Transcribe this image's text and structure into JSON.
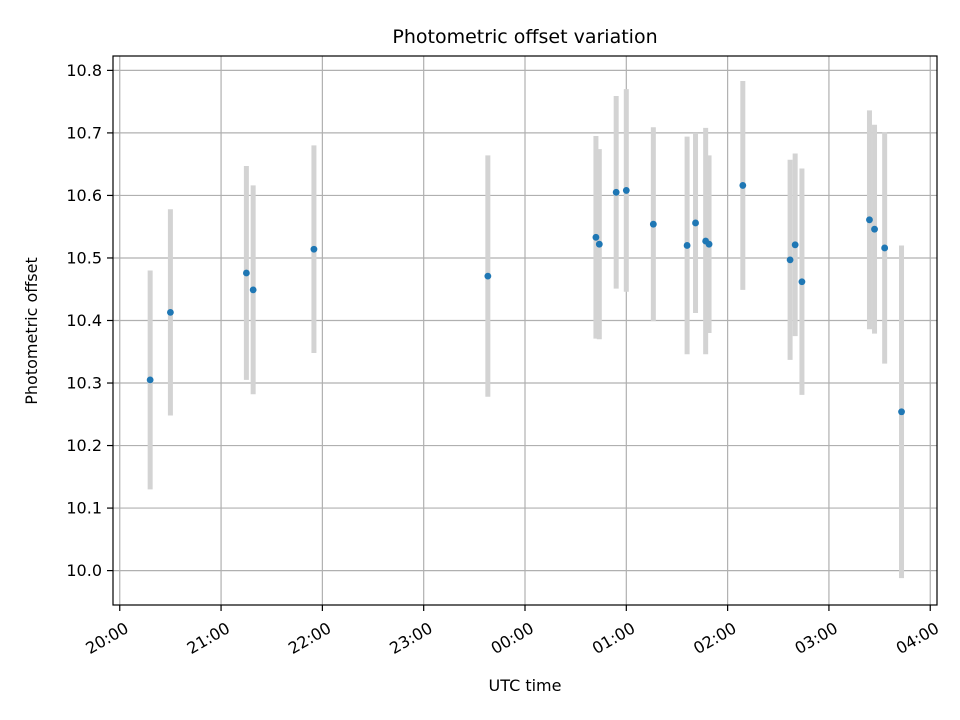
{
  "chart_data": {
    "type": "scatter",
    "title": "Photometric offset variation",
    "xlabel": "UTC time",
    "ylabel": "Photometric offset",
    "xlim": [
      "2000-01-01 19:56",
      "2000-01-02 04:04"
    ],
    "ylim": [
      9.945,
      10.823
    ],
    "x_ticks": [
      {
        "value": "2000-01-01 20:00",
        "label": "20:00"
      },
      {
        "value": "2000-01-01 21:00",
        "label": "21:00"
      },
      {
        "value": "2000-01-01 22:00",
        "label": "22:00"
      },
      {
        "value": "2000-01-01 23:00",
        "label": "23:00"
      },
      {
        "value": "2000-01-02 00:00",
        "label": "00:00"
      },
      {
        "value": "2000-01-02 01:00",
        "label": "01:00"
      },
      {
        "value": "2000-01-02 02:00",
        "label": "02:00"
      },
      {
        "value": "2000-01-02 03:00",
        "label": "03:00"
      },
      {
        "value": "2000-01-02 04:00",
        "label": "04:00"
      }
    ],
    "y_ticks": [
      10.0,
      10.1,
      10.2,
      10.3,
      10.4,
      10.5,
      10.6,
      10.7,
      10.8
    ],
    "grid": true,
    "point_color": "#1f77b4",
    "errorbar_color": "#d3d3d3",
    "points": [
      {
        "x": "2000-01-01 20:18",
        "y": 10.305,
        "err": 0.175
      },
      {
        "x": "2000-01-01 20:30",
        "y": 10.413,
        "err": 0.165
      },
      {
        "x": "2000-01-01 21:15",
        "y": 10.476,
        "err": 0.171
      },
      {
        "x": "2000-01-01 21:19",
        "y": 10.449,
        "err": 0.167
      },
      {
        "x": "2000-01-01 21:55",
        "y": 10.514,
        "err": 0.166
      },
      {
        "x": "2000-01-01 23:38",
        "y": 10.471,
        "err": 0.193
      },
      {
        "x": "2000-01-02 00:42",
        "y": 10.533,
        "err": 0.162
      },
      {
        "x": "2000-01-02 00:44",
        "y": 10.522,
        "err": 0.152
      },
      {
        "x": "2000-01-02 00:54",
        "y": 10.605,
        "err": 0.154
      },
      {
        "x": "2000-01-02 01:00",
        "y": 10.608,
        "err": 0.162
      },
      {
        "x": "2000-01-02 01:16",
        "y": 10.554,
        "err": 0.155
      },
      {
        "x": "2000-01-02 01:36",
        "y": 10.52,
        "err": 0.174
      },
      {
        "x": "2000-01-02 01:41",
        "y": 10.556,
        "err": 0.144
      },
      {
        "x": "2000-01-02 01:47",
        "y": 10.527,
        "err": 0.181
      },
      {
        "x": "2000-01-02 01:49",
        "y": 10.522,
        "err": 0.142
      },
      {
        "x": "2000-01-02 02:09",
        "y": 10.616,
        "err": 0.167
      },
      {
        "x": "2000-01-02 02:37",
        "y": 10.497,
        "err": 0.16
      },
      {
        "x": "2000-01-02 02:40",
        "y": 10.521,
        "err": 0.146
      },
      {
        "x": "2000-01-02 02:44",
        "y": 10.462,
        "err": 0.181
      },
      {
        "x": "2000-01-02 03:24",
        "y": 10.561,
        "err": 0.175
      },
      {
        "x": "2000-01-02 03:27",
        "y": 10.546,
        "err": 0.167
      },
      {
        "x": "2000-01-02 03:33",
        "y": 10.516,
        "err": 0.185
      },
      {
        "x": "2000-01-02 03:43",
        "y": 10.254,
        "err": 0.266
      }
    ]
  }
}
